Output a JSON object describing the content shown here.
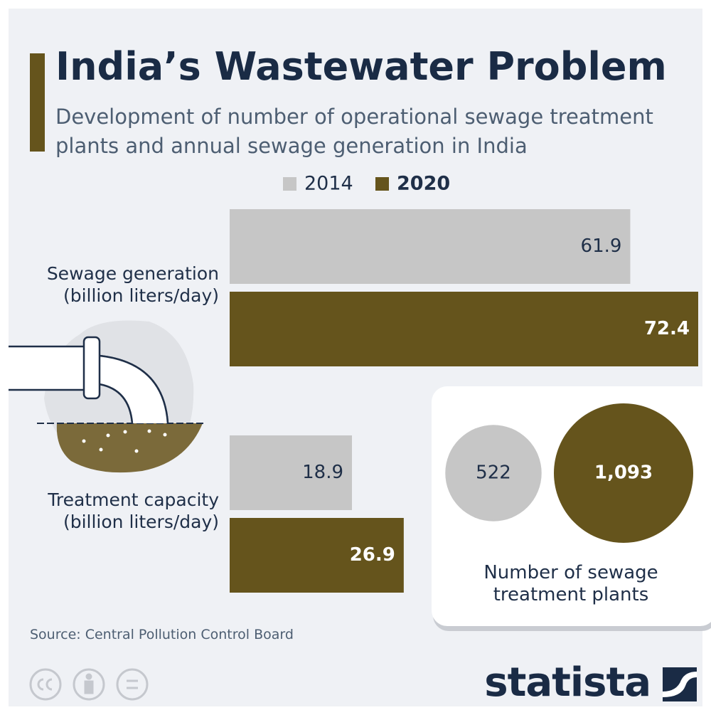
{
  "title": "India’s Wastewater Problem",
  "subtitle": "Development of number of operational sewage treatment plants and annual sewage generation in India",
  "source": "Source: Central Pollution Control Board",
  "brand": "statista",
  "chart_data": [
    {
      "type": "bar",
      "categories": [
        "Sewage generation (billion liters/day)",
        "Treatment capacity (billion liters/day)"
      ],
      "series": [
        {
          "name": "2014",
          "color": "#c6c6c6",
          "values": [
            61.9,
            18.9
          ]
        },
        {
          "name": "2020",
          "color": "#65541c",
          "values": [
            72.4,
            26.9
          ]
        }
      ]
    },
    {
      "type": "bubble",
      "title": "Number of sewage treatment plants",
      "values": [
        522,
        1093
      ],
      "value_labels": [
        "522",
        "1,093"
      ],
      "colors": [
        "#c6c6c6",
        "#65541c"
      ]
    }
  ]
}
